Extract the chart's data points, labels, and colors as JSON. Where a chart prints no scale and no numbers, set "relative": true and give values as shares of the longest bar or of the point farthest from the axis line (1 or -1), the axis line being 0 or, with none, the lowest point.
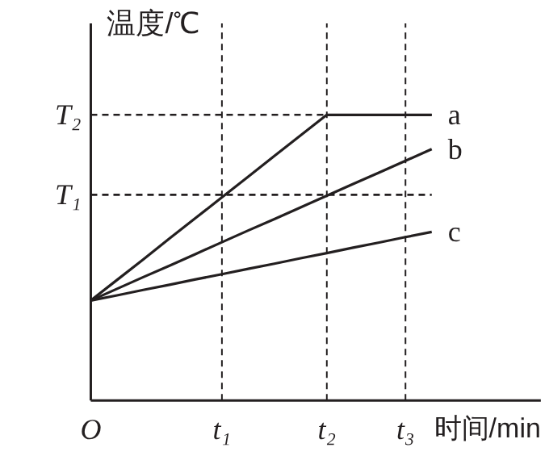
{
  "chart_data": {
    "type": "line",
    "relative": true,
    "xlabel": "时间/min",
    "ylabel": "温度/℃",
    "categories": [
      "O",
      null,
      null,
      null,
      null,
      "t₁",
      null,
      null,
      null,
      "t₂",
      null,
      null,
      "t₃",
      null
    ],
    "series": [
      {
        "name": "a",
        "color": "#231f20",
        "values": [
          0.35,
          0.422,
          0.494,
          0.567,
          0.639,
          0.711,
          0.783,
          0.856,
          0.928,
          1,
          1,
          1,
          1,
          1
        ]
      },
      {
        "name": "b",
        "color": "#231f20",
        "values": [
          0.35,
          0.391,
          0.432,
          0.472,
          0.513,
          0.554,
          0.595,
          0.635,
          0.676,
          0.717,
          0.758,
          0.798,
          0.839,
          0.88
        ]
      },
      {
        "name": "c",
        "color": "#231f20",
        "values": [
          0.35,
          0.368,
          0.387,
          0.405,
          0.424,
          0.442,
          0.461,
          0.479,
          0.498,
          0.516,
          0.535,
          0.553,
          0.572,
          0.59
        ]
      }
    ],
    "ref_lines": [
      {
        "axis": "y",
        "value": 1,
        "label": "T₂",
        "color": "#231f20",
        "line_style": "dashed"
      },
      {
        "axis": "y",
        "value": 0.72,
        "label": "T₁",
        "color": "#231f20",
        "line_style": "dashed"
      },
      {
        "axis": "x",
        "value": "t₁",
        "color": "#231f20",
        "line_style": "dashed"
      },
      {
        "axis": "x",
        "value": "t₂",
        "color": "#231f20",
        "line_style": "dashed"
      },
      {
        "axis": "x",
        "value": "t₃",
        "color": "#231f20",
        "line_style": "dashed"
      }
    ],
    "marker": "none",
    "line_style": "solid"
  }
}
